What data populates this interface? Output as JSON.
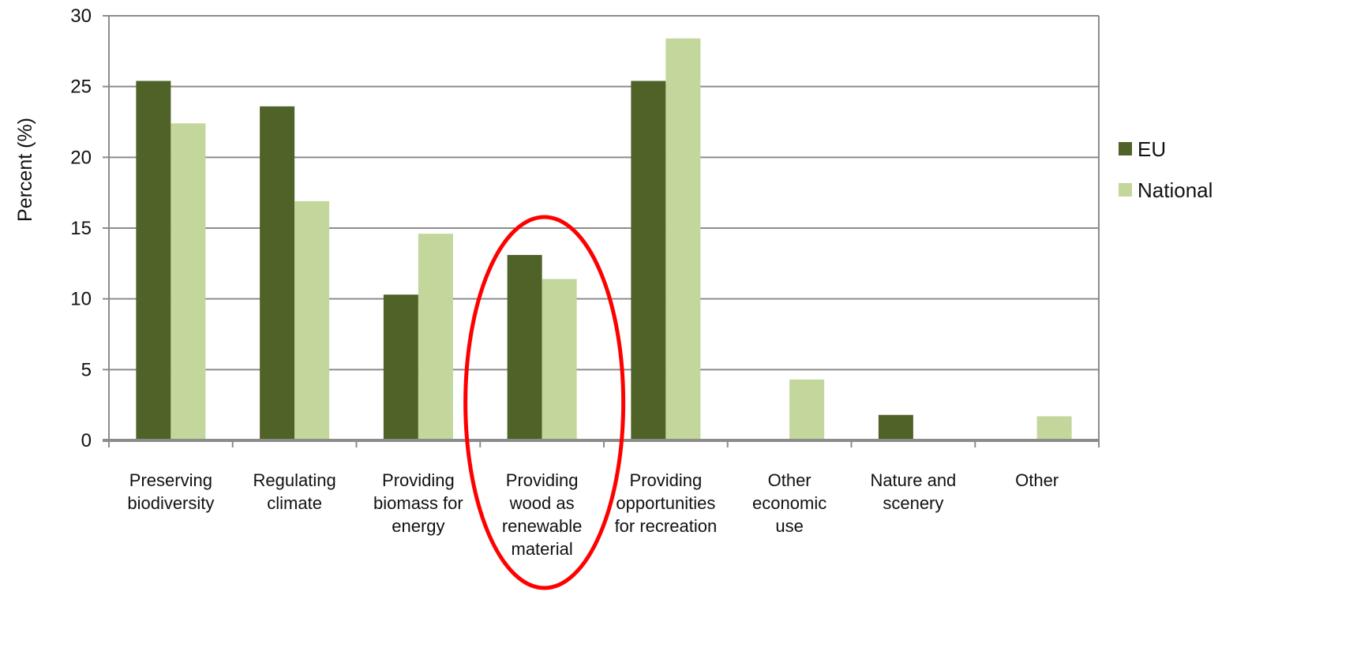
{
  "chart_data": {
    "type": "bar",
    "title": "",
    "xlabel": "",
    "ylabel": "Percent (%)",
    "ylim": [
      0,
      30
    ],
    "yticks": [
      0,
      5,
      10,
      15,
      20,
      25,
      30
    ],
    "grid": true,
    "legend_position": "right",
    "categories": [
      "Preserving biodiversity",
      "Regulating climate",
      "Providing biomass for energy",
      "Providing wood as renewable material",
      "Providing opportunities for recreation",
      "Other economic use",
      "Nature and scenery",
      "Other"
    ],
    "category_label_lines": [
      [
        "Preserving",
        "biodiversity"
      ],
      [
        "Regulating",
        "climate"
      ],
      [
        "Providing",
        "biomass for",
        "energy"
      ],
      [
        "Providing",
        "wood as",
        "renewable",
        "material"
      ],
      [
        "Providing",
        "opportunities",
        "for recreation"
      ],
      [
        "Other",
        "economic",
        "use"
      ],
      [
        "Nature and",
        "scenery"
      ],
      [
        "Other"
      ]
    ],
    "series": [
      {
        "name": "EU",
        "color": "#4f6228",
        "values": [
          25.4,
          23.6,
          10.3,
          13.1,
          25.4,
          0,
          1.8,
          0
        ]
      },
      {
        "name": "National",
        "color": "#c3d69b",
        "values": [
          22.4,
          16.9,
          14.6,
          11.4,
          28.4,
          4.3,
          0,
          1.7
        ]
      }
    ],
    "annotation": {
      "shape": "ellipse",
      "color": "#ff0000",
      "highlight_category": "Providing wood as renewable material"
    }
  }
}
